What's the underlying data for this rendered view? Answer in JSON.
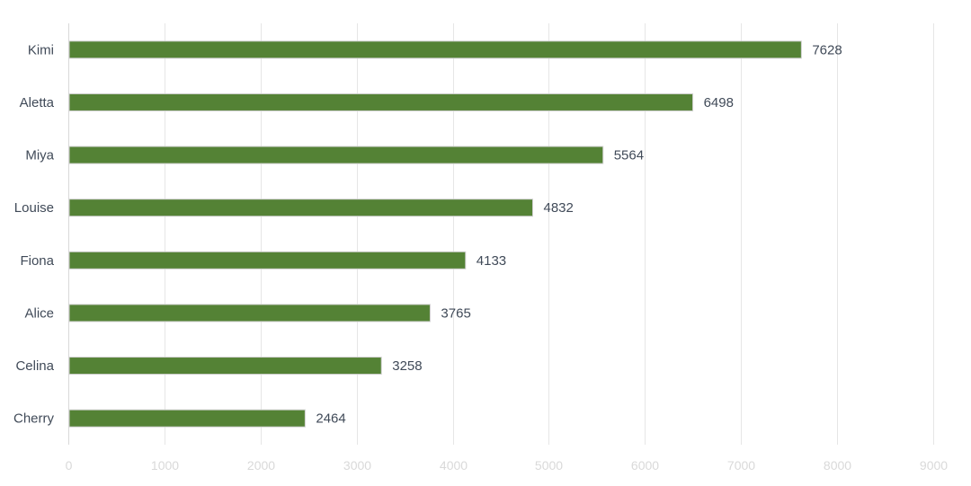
{
  "chart_data": {
    "type": "bar",
    "orientation": "horizontal",
    "categories": [
      "Kimi",
      "Aletta",
      "Miya",
      "Louise",
      "Fiona",
      "Alice",
      "Celina",
      "Cherry"
    ],
    "values": [
      7628,
      6498,
      5564,
      4832,
      4133,
      3765,
      3258,
      2464
    ],
    "value_labels": [
      "7628",
      "6498",
      "5564",
      "4832",
      "4133",
      "3765",
      "3258",
      "2464"
    ],
    "xlim": [
      0,
      9000
    ],
    "x_ticks": [
      "0",
      "1000",
      "2000",
      "3000",
      "4000",
      "5000",
      "6000",
      "7000",
      "8000",
      "9000"
    ],
    "title": "",
    "xlabel": "",
    "ylabel": "",
    "grid": "vertical",
    "legend": "none",
    "colors": {
      "bar": "#548235",
      "bar_border": "#d0d0d0",
      "text": "#404a58",
      "tick_text": "#d9d9d9",
      "grid": "#e6e6e6"
    }
  }
}
